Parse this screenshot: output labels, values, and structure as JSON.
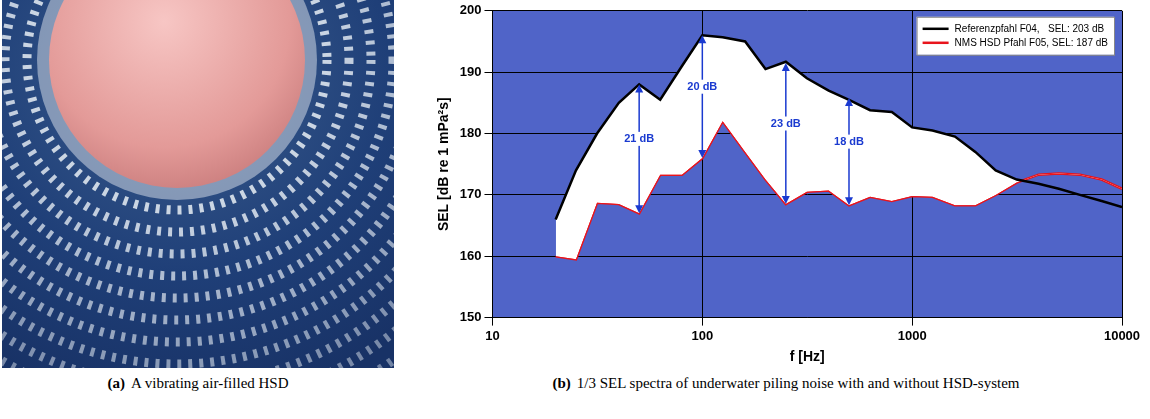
{
  "panels": [
    {
      "label": "(a)",
      "caption": "A vibrating air-filled HSD"
    },
    {
      "label": "(b)",
      "caption": "1/3 SEL spectra of underwater piling noise with and without HSD-system"
    }
  ],
  "chart_data": {
    "type": "line",
    "log": "x",
    "grid": true,
    "legend": "upper right",
    "x_label": "f [Hz]",
    "y_label": "SEL [dB re 1 mPa²s]",
    "x": [
      20,
      25,
      31.5,
      40,
      50,
      63,
      80,
      100,
      125,
      160,
      200,
      250,
      315,
      400,
      500,
      630,
      800,
      1000,
      1250,
      1600,
      2000,
      2500,
      3150,
      4000,
      5000,
      6300,
      8000,
      10000
    ],
    "series": [
      {
        "name": "Referenzpfahl F04,   SEL: 203 dB",
        "color": "#000000",
        "values": [
          166,
          174,
          180,
          185,
          188,
          185.5,
          191,
          196,
          195.7,
          195,
          190.5,
          191.7,
          189,
          187,
          185.5,
          183.8,
          183.5,
          181,
          180.5,
          179.5,
          177,
          174,
          172.5,
          171.8,
          171,
          170,
          169,
          168
        ]
      },
      {
        "name": "NMS HSD Pfahl F05, SEL: 187 dB",
        "color": "#e8141c",
        "values": [
          160,
          159.5,
          168.7,
          168.5,
          167,
          173.3,
          173.3,
          176,
          182,
          177,
          172.5,
          168.5,
          170.5,
          170.7,
          168.3,
          169.7,
          169,
          169.8,
          169.7,
          168.3,
          168.3,
          170,
          172,
          173.3,
          173.5,
          173.3,
          172.5,
          171
        ]
      }
    ],
    "xlim": [
      10,
      10000
    ],
    "xticks": [
      10,
      100,
      1000,
      10000
    ],
    "ylim": [
      150,
      200
    ],
    "yticks": [
      150,
      160,
      170,
      180,
      190,
      200
    ],
    "annotations": [
      {
        "text": "21 dB",
        "x": 50,
        "y_from": 167,
        "y_to": 188
      },
      {
        "text": "20 dB",
        "x": 100,
        "y_from": 176,
        "y_to": 196
      },
      {
        "text": "23 dB",
        "x": 250,
        "y_from": 168.5,
        "y_to": 191.5
      },
      {
        "text": "18 dB",
        "x": 500,
        "y_from": 168.3,
        "y_to": 185.8
      }
    ]
  }
}
